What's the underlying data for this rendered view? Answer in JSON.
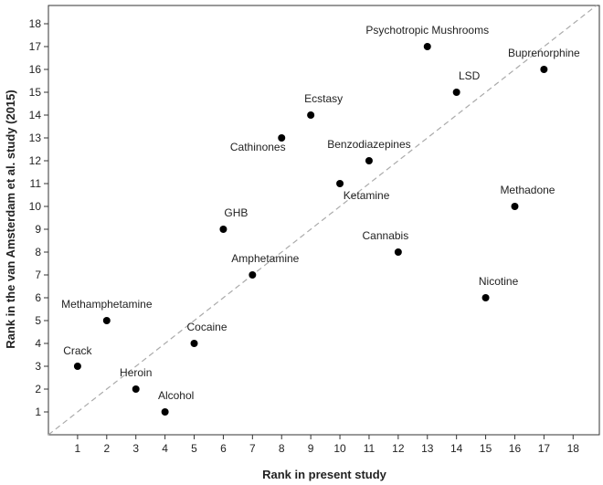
{
  "chart_data": {
    "type": "scatter",
    "xlabel": "Rank in present study",
    "ylabel": "Rank in the van Amsterdam et al. study (2015)",
    "xlim": [
      0,
      18.9
    ],
    "ylim": [
      0,
      18.8
    ],
    "xticks": [
      1,
      2,
      3,
      4,
      5,
      6,
      7,
      8,
      9,
      10,
      11,
      12,
      13,
      14,
      15,
      16,
      17,
      18
    ],
    "yticks": [
      1,
      2,
      3,
      4,
      5,
      6,
      7,
      8,
      9,
      10,
      11,
      12,
      13,
      14,
      15,
      16,
      17,
      18
    ],
    "reference_line": "y = x (dashed)",
    "grid": false,
    "legend": "none",
    "point_color": "#000000",
    "points": [
      {
        "label": "Crack",
        "x": 1,
        "y": 3
      },
      {
        "label": "Methamphetamine",
        "x": 2,
        "y": 5
      },
      {
        "label": "Heroin",
        "x": 3,
        "y": 2
      },
      {
        "label": "Alcohol",
        "x": 4,
        "y": 1
      },
      {
        "label": "Cocaine",
        "x": 5,
        "y": 4
      },
      {
        "label": "GHB",
        "x": 6,
        "y": 9
      },
      {
        "label": "Amphetamine",
        "x": 7,
        "y": 7
      },
      {
        "label": "Cathinones",
        "x": 8,
        "y": 13
      },
      {
        "label": "Ecstasy",
        "x": 9,
        "y": 14
      },
      {
        "label": "Ketamine",
        "x": 10,
        "y": 11
      },
      {
        "label": "Benzodiazepines",
        "x": 11,
        "y": 12
      },
      {
        "label": "Cannabis",
        "x": 12,
        "y": 8
      },
      {
        "label": "Psychotropic Mushrooms",
        "x": 13,
        "y": 17
      },
      {
        "label": "LSD",
        "x": 14,
        "y": 15
      },
      {
        "label": "Nicotine",
        "x": 15,
        "y": 6
      },
      {
        "label": "Methadone",
        "x": 16,
        "y": 10
      },
      {
        "label": "Buprenorphine",
        "x": 17,
        "y": 16
      }
    ]
  }
}
